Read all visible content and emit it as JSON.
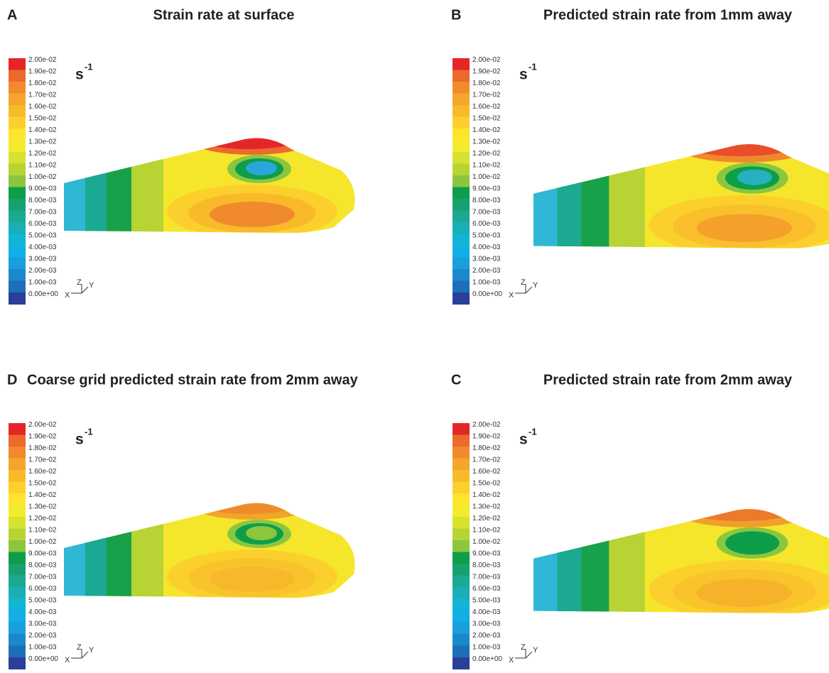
{
  "panels": [
    {
      "letter": "A",
      "title": "Strain rate at surface"
    },
    {
      "letter": "B",
      "title": "Predicted strain rate from 1mm away"
    },
    {
      "letter": "D",
      "title": "Coarse grid predicted strain rate from 2mm away"
    },
    {
      "letter": "C",
      "title": "Predicted strain rate from 2mm away"
    }
  ],
  "colorbar": {
    "labels": [
      "2.00e-02",
      "1.90e-02",
      "1.80e-02",
      "1.70e-02",
      "1.60e-02",
      "1.50e-02",
      "1.40e-02",
      "1.30e-02",
      "1.20e-02",
      "1.10e-02",
      "1.00e-02",
      "9.00e-03",
      "8.00e-03",
      "7.00e-03",
      "6.00e-03",
      "5.00e-03",
      "4.00e-03",
      "3.00e-03",
      "2.00e-03",
      "1.00e-03",
      "0.00e+00"
    ],
    "unit": "s",
    "unit_exponent": "-1"
  },
  "axes_triad": {
    "z": "Z",
    "y": "Y",
    "x": "X"
  }
}
